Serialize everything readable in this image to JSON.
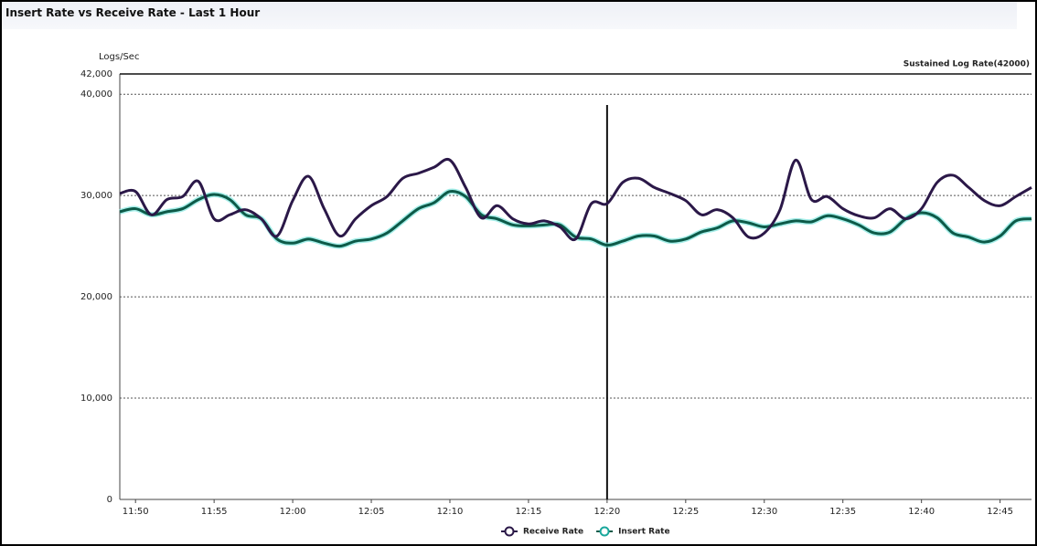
{
  "chart_data": {
    "type": "line",
    "title": "Insert Rate vs Receive Rate - Last 1 Hour",
    "y_label": "Logs/Sec",
    "threshold": {
      "label": "Sustained Log Rate(42000)",
      "value": 42000
    },
    "cursor": "12:20",
    "x": [
      "11:49",
      "11:50",
      "11:51",
      "11:52",
      "11:53",
      "11:54",
      "11:55",
      "11:56",
      "11:57",
      "11:58",
      "11:59",
      "12:00",
      "12:01",
      "12:02",
      "12:03",
      "12:04",
      "12:05",
      "12:06",
      "12:07",
      "12:08",
      "12:09",
      "12:10",
      "12:11",
      "12:12",
      "12:13",
      "12:14",
      "12:15",
      "12:16",
      "12:17",
      "12:18",
      "12:19",
      "12:20",
      "12:21",
      "12:22",
      "12:23",
      "12:24",
      "12:25",
      "12:26",
      "12:27",
      "12:28",
      "12:29",
      "12:30",
      "12:31",
      "12:32",
      "12:33",
      "12:34",
      "12:35",
      "12:36",
      "12:37",
      "12:38",
      "12:39",
      "12:40",
      "12:41",
      "12:42",
      "12:43",
      "12:44",
      "12:45",
      "12:46",
      "12:47"
    ],
    "series": [
      {
        "name": "Receive Rate",
        "color": "#2b1848",
        "values": [
          30200,
          30400,
          28100,
          29600,
          29900,
          31400,
          27700,
          28100,
          28600,
          27700,
          26000,
          29500,
          31900,
          28700,
          26000,
          27700,
          29000,
          29900,
          31700,
          32200,
          32800,
          33500,
          30800,
          27800,
          29000,
          27700,
          27200,
          27500,
          26900,
          25700,
          29200,
          29200,
          31300,
          31700,
          30800,
          30200,
          29500,
          28100,
          28600,
          27800,
          25900,
          26300,
          28600,
          33500,
          29600,
          29900,
          28700,
          28000,
          27800,
          28700,
          27700,
          28700,
          31300,
          32000,
          30800,
          29500,
          29000,
          29900,
          30800
        ]
      },
      {
        "name": "Insert Rate",
        "color": "#0d5a48",
        "values": [
          28400,
          28700,
          28100,
          28400,
          28700,
          29600,
          30100,
          29600,
          28100,
          27700,
          25700,
          25300,
          25700,
          25300,
          25000,
          25500,
          25700,
          26300,
          27500,
          28700,
          29300,
          30400,
          29900,
          28100,
          27700,
          27100,
          27000,
          27100,
          27100,
          25900,
          25700,
          25100,
          25500,
          26000,
          26000,
          25500,
          25700,
          26400,
          26800,
          27500,
          27300,
          26900,
          27200,
          27500,
          27400,
          28000,
          27700,
          27100,
          26300,
          26400,
          27700,
          28300,
          27800,
          26300,
          25900,
          25400,
          26000,
          27500,
          27700
        ]
      }
    ],
    "xlim": [
      "11:49",
      "12:47"
    ],
    "xticks": [
      "11:50",
      "11:55",
      "12:00",
      "12:05",
      "12:10",
      "12:15",
      "12:20",
      "12:25",
      "12:30",
      "12:35",
      "12:40",
      "12:45"
    ],
    "ylim": [
      0,
      42000
    ],
    "yticks": [
      0,
      {
        "value": 10000,
        "label": "10,000"
      },
      {
        "value": 20000,
        "label": "20,000"
      },
      {
        "value": 30000,
        "label": "30,000"
      },
      {
        "value": 40000,
        "label": "40,000"
      },
      {
        "value": 42000,
        "label": "42,000"
      }
    ],
    "grid": true,
    "legend": "bottom"
  }
}
